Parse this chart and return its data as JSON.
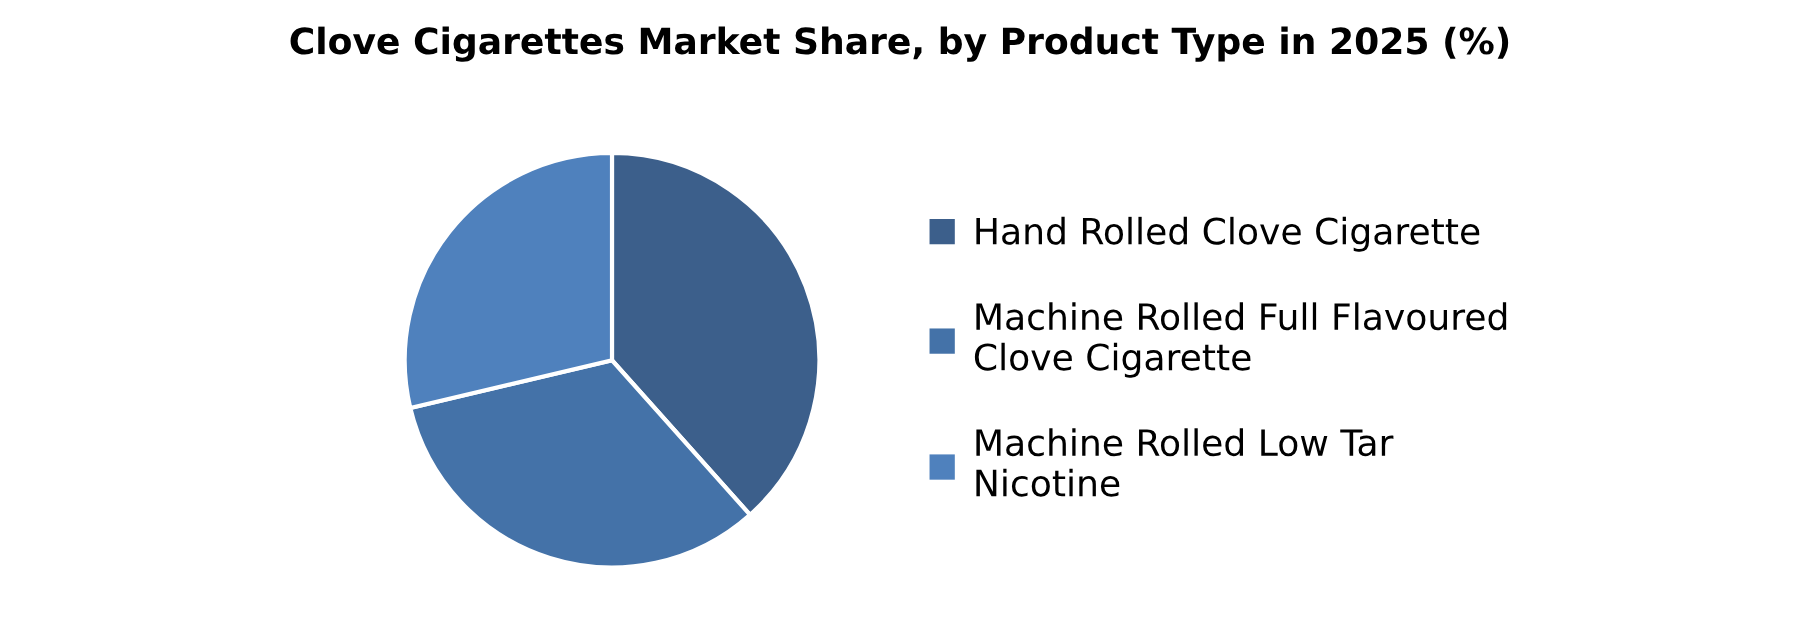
{
  "chart_data": {
    "type": "pie",
    "title": "Clove Cigarettes Market Share, by Product Type in 2025 (%)",
    "categories": [
      "Hand Rolled Clove Cigarette",
      "Machine Rolled Full Flavoured Clove Cigarette",
      "Machine Rolled Low Tar Nicotine"
    ],
    "values": [
      38.4,
      32.9,
      28.7
    ],
    "colors": [
      "#3c5f8b",
      "#4472a8",
      "#4f81bd"
    ],
    "legend": "right"
  }
}
